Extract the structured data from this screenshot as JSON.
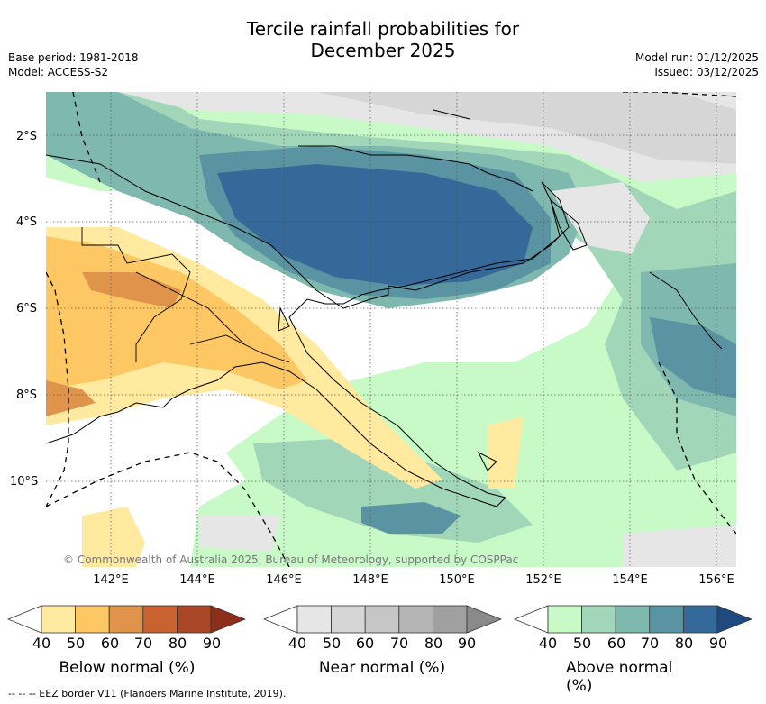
{
  "title_line1": "Tercile rainfall probabilities for",
  "title_line2": "December 2025",
  "meta_left": {
    "base_period": "Base period: 1981-2018",
    "model": "Model: ACCESS-S2"
  },
  "meta_right": {
    "model_run": "Model run: 01/12/2025",
    "issued": "Issued: 03/12/2025"
  },
  "lat_labels": [
    "2°S",
    "4°S",
    "6°S",
    "8°S",
    "10°S"
  ],
  "lon_labels": [
    "142°E",
    "144°E",
    "146°E",
    "148°E",
    "150°E",
    "152°E",
    "154°E",
    "156°E"
  ],
  "copyright": "© Commonwealth of Australia 2025, Bureau of Meteorology, supported by COSPPac",
  "colorbars": [
    {
      "title": "Below normal (%)",
      "ticks": [
        "40",
        "50",
        "60",
        "70",
        "80",
        "90"
      ],
      "colors": [
        "#ffffff",
        "#ffeaa0",
        "#fdc864",
        "#e0934a",
        "#c8622e",
        "#a84628",
        "#8c2f1a"
      ]
    },
    {
      "title": "Near normal (%)",
      "ticks": [
        "40",
        "50",
        "60",
        "70",
        "80",
        "90"
      ],
      "colors": [
        "#ffffff",
        "#e6e6e6",
        "#d6d6d6",
        "#c6c6c6",
        "#b4b4b4",
        "#a0a0a0",
        "#8a8a8a"
      ]
    },
    {
      "title": "Above normal (%)",
      "ticks": [
        "40",
        "50",
        "60",
        "70",
        "80",
        "90"
      ],
      "colors": [
        "#ffffff",
        "#c8fac8",
        "#a2d6b8",
        "#7fb8ae",
        "#5a93a2",
        "#34699a",
        "#1e4a80"
      ]
    }
  ],
  "footer": "--  --  -- EEZ border V11 (Flanders Marine Institute, 2019).",
  "map_colors": {
    "above50": "#c8fac8",
    "above60": "#a2d6b8",
    "above70": "#7fb8ae",
    "above80": "#5a93a2",
    "above90": "#34699a",
    "near50": "#e6e6e6",
    "near60": "#d6d6d6",
    "below50": "#ffeaa0",
    "below60": "#fdc864",
    "below70": "#e0934a"
  }
}
